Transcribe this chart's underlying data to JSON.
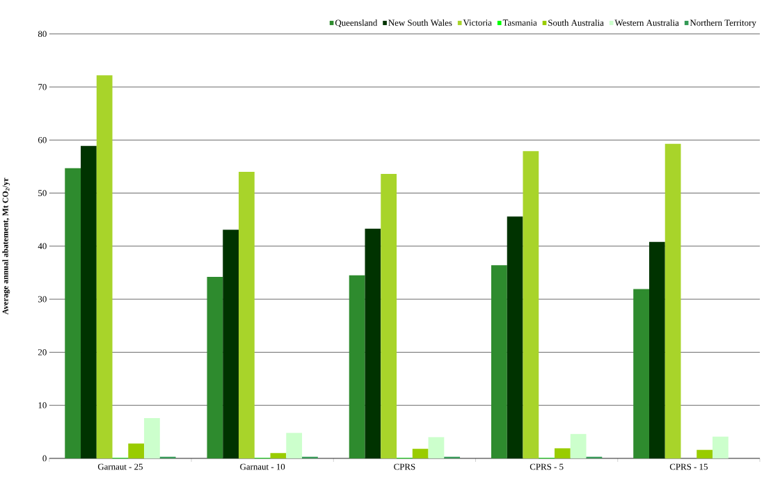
{
  "chart_data": {
    "type": "bar",
    "ylabel": "Average annual abatement, Mt CO$_{2}$/yr",
    "categories": [
      "Garnaut - 25",
      "Garnaut - 10",
      "CPRS",
      "CPRS - 5",
      "CPRS - 15"
    ],
    "series": [
      {
        "name": "Queensland",
        "color": "#2e8b2e",
        "values": [
          54.7,
          34.2,
          34.5,
          36.4,
          31.9
        ]
      },
      {
        "name": "New South Wales",
        "color": "#003300",
        "values": [
          58.9,
          43.1,
          43.3,
          45.6,
          40.8
        ]
      },
      {
        "name": "Victoria",
        "color": "#a8d42a",
        "values": [
          72.2,
          54.0,
          53.6,
          57.9,
          59.3
        ]
      },
      {
        "name": "Tasmania",
        "color": "#00ff00",
        "values": [
          0.1,
          0.1,
          0.1,
          0.1,
          0
        ]
      },
      {
        "name": "South Australia",
        "color": "#99cc00",
        "values": [
          2.8,
          1.0,
          1.8,
          1.9,
          1.6
        ]
      },
      {
        "name": "Western Australia",
        "color": "#ccffcc",
        "values": [
          7.6,
          4.8,
          4.0,
          4.6,
          4.1
        ]
      },
      {
        "name": "Northern Territory",
        "color": "#339955",
        "values": [
          0.3,
          0.3,
          0.3,
          0.3,
          0
        ]
      }
    ],
    "ylim": [
      0,
      80
    ],
    "yticks": [
      0,
      10,
      20,
      30,
      40,
      50,
      60,
      70,
      80
    ],
    "grid": "y",
    "legend": "top"
  }
}
